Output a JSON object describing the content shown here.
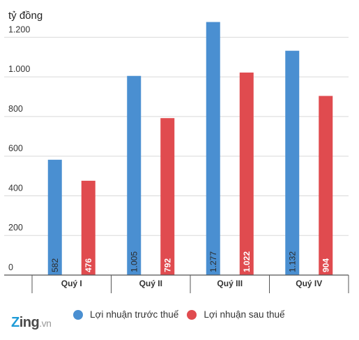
{
  "chart_data": {
    "type": "bar",
    "ylabel": "tỷ đồng",
    "categories": [
      "Quý I",
      "Quý II",
      "Quý III",
      "Quý IV"
    ],
    "series": [
      {
        "name": "Lợi nhuận trước thuế",
        "color": "#4a8fd1",
        "values": [
          582,
          1005,
          1277,
          1132
        ],
        "labels": [
          "582",
          "1.005",
          "1.277",
          "1.132"
        ]
      },
      {
        "name": "Lợi nhuận sau thuế",
        "color": "#e04b4f",
        "values": [
          476,
          792,
          1022,
          904
        ],
        "labels": [
          "476",
          "792",
          "1.022",
          "904"
        ]
      }
    ],
    "ylim": [
      0,
      1300
    ],
    "yticks": [
      {
        "value": 0,
        "label": "0"
      },
      {
        "value": 200,
        "label": "200"
      },
      {
        "value": 400,
        "label": "400"
      },
      {
        "value": 600,
        "label": "600"
      },
      {
        "value": 800,
        "label": "800"
      },
      {
        "value": 1000,
        "label": "1.000"
      },
      {
        "value": 1200,
        "label": "1.200"
      }
    ],
    "grid": true,
    "legend_position": "bottom"
  },
  "logo": {
    "z": "Z",
    "ing": "ing",
    "vn": ".vn"
  }
}
